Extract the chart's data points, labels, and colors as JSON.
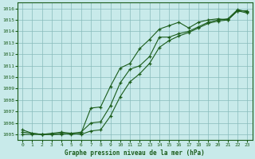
{
  "title": "Graphe pression niveau de la mer (hPa)",
  "background_color": "#c8eaea",
  "grid_color": "#88bbbb",
  "line_color": "#1a5c1a",
  "xlim": [
    -0.5,
    23.5
  ],
  "ylim": [
    1004.5,
    1016.5
  ],
  "xticks": [
    0,
    1,
    2,
    3,
    4,
    5,
    6,
    7,
    8,
    9,
    10,
    11,
    12,
    13,
    14,
    15,
    16,
    17,
    18,
    19,
    20,
    21,
    22,
    23
  ],
  "yticks": [
    1005,
    1006,
    1007,
    1008,
    1009,
    1010,
    1011,
    1012,
    1013,
    1014,
    1015,
    1016
  ],
  "line1_x": [
    0,
    1,
    2,
    3,
    4,
    5,
    6,
    7,
    8,
    9,
    10,
    11,
    12,
    13,
    14,
    15,
    16,
    17,
    18,
    19,
    20,
    21,
    22,
    23
  ],
  "line1_y": [
    1005.4,
    1005.1,
    1005.0,
    1005.0,
    1005.1,
    1005.0,
    1005.1,
    1007.3,
    1007.4,
    1009.2,
    1010.8,
    1011.2,
    1012.5,
    1013.3,
    1014.2,
    1014.5,
    1014.8,
    1014.3,
    1014.8,
    1015.0,
    1015.1,
    1015.0,
    1015.8,
    1015.8
  ],
  "line2_x": [
    0,
    1,
    2,
    3,
    4,
    5,
    6,
    7,
    8,
    9,
    10,
    11,
    12,
    13,
    14,
    15,
    16,
    17,
    18,
    19,
    20,
    21,
    22,
    23
  ],
  "line2_y": [
    1005.2,
    1005.1,
    1005.0,
    1005.1,
    1005.2,
    1005.1,
    1005.2,
    1006.0,
    1006.1,
    1007.5,
    1009.5,
    1010.7,
    1011.0,
    1011.8,
    1013.5,
    1013.5,
    1013.8,
    1014.0,
    1014.4,
    1014.8,
    1015.0,
    1015.1,
    1015.9,
    1015.7
  ],
  "line3_x": [
    0,
    1,
    2,
    3,
    4,
    5,
    6,
    7,
    8,
    9,
    10,
    11,
    12,
    13,
    14,
    15,
    16,
    17,
    18,
    19,
    20,
    21,
    22,
    23
  ],
  "line3_y": [
    1005.0,
    1005.0,
    1005.0,
    1005.0,
    1005.0,
    1005.1,
    1005.0,
    1005.3,
    1005.4,
    1006.6,
    1008.3,
    1009.6,
    1010.3,
    1011.2,
    1012.6,
    1013.2,
    1013.6,
    1013.9,
    1014.3,
    1014.7,
    1014.9,
    1015.0,
    1015.8,
    1015.6
  ]
}
